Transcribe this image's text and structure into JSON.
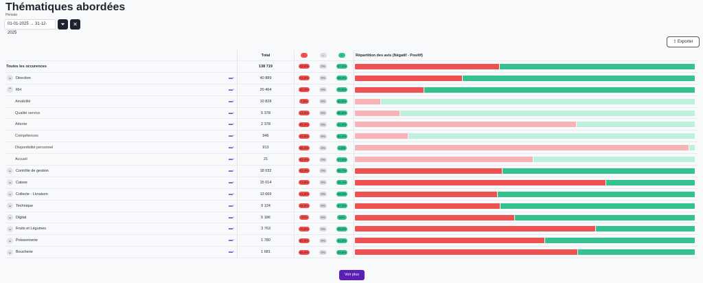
{
  "title": "Thématiques abordées",
  "period_label": "Période",
  "period_value": "01-01-2025 → 31-12-2025",
  "export_label": "⇪ Exporter",
  "more_label": "Voir plus",
  "headers": {
    "total": "Total",
    "neg": "-",
    "neu": "=",
    "pos": "+",
    "bar": "Répartition des avis (Négatif - Positif)"
  },
  "colors": {
    "negative": "#ef5050",
    "positive": "#34c38f",
    "negative_light": "#f8b4b4",
    "positive_light": "#bff0dc"
  },
  "rows": [
    {
      "label": "Toutes les occurences",
      "total": "138 719",
      "neg": "42,6%",
      "neu": "0%",
      "pos": "57,4%",
      "n": 42.6,
      "level": "all"
    },
    {
      "label": "Direction",
      "total": "40 889",
      "neg": "31,6%",
      "neu": "0%",
      "pos": "68,4%",
      "n": 31.6,
      "level": "group",
      "expanded": false
    },
    {
      "label": "RH",
      "total": "20 464",
      "neg": "20,2%",
      "neu": "0%",
      "pos": "79,8%",
      "n": 20.2,
      "level": "group",
      "expanded": true
    },
    {
      "label": "Amabilité",
      "total": "10 828",
      "neg": "7,5%",
      "neu": "0%",
      "pos": "92,5%",
      "n": 7.5,
      "level": "child"
    },
    {
      "label": "Qualité service",
      "total": "5 378",
      "neg": "13,2%",
      "neu": "0%",
      "pos": "86,8%",
      "n": 13.2,
      "level": "child"
    },
    {
      "label": "Attente",
      "total": "2 378",
      "neg": "65,2%",
      "neu": "0%",
      "pos": "34,8%",
      "n": 65.2,
      "level": "child"
    },
    {
      "label": "Compétences",
      "total": "946",
      "neg": "15,6%",
      "neu": "0%",
      "pos": "84,4%",
      "n": 15.6,
      "level": "child"
    },
    {
      "label": "Disponibilité personnel",
      "total": "913",
      "neg": "98,4%",
      "neu": "0%",
      "pos": "1,6%",
      "n": 98.4,
      "level": "child"
    },
    {
      "label": "Accueil",
      "total": "21",
      "neg": "52,4%",
      "neu": "0%",
      "pos": "47,6%",
      "n": 52.4,
      "level": "child"
    },
    {
      "label": "Contrôle de gestion",
      "total": "18 032",
      "neg": "43,3%",
      "neu": "0%",
      "pos": "56,7%",
      "n": 43.3,
      "level": "group",
      "expanded": false
    },
    {
      "label": "Caisse",
      "total": "15 014",
      "neg": "73,9%",
      "neu": "0%",
      "pos": "26,1%",
      "n": 73.9,
      "level": "group",
      "expanded": false
    },
    {
      "label": "Collecte - Livraison",
      "total": "13 669",
      "neg": "41,8%",
      "neu": "0%",
      "pos": "58,2%",
      "n": 41.8,
      "level": "group",
      "expanded": false
    },
    {
      "label": "Technique",
      "total": "9 124",
      "neg": "42,8%",
      "neu": "0%",
      "pos": "57,2%",
      "n": 42.8,
      "level": "group",
      "expanded": false
    },
    {
      "label": "Digital",
      "total": "5 186",
      "neg": "47%",
      "neu": "0%",
      "pos": "53%",
      "n": 47,
      "level": "group",
      "expanded": false
    },
    {
      "label": "Fruits et Légumes",
      "total": "3 763",
      "neg": "70,8%",
      "neu": "0%",
      "pos": "29,2%",
      "n": 70.8,
      "level": "group",
      "expanded": false
    },
    {
      "label": "Poissonnerie",
      "total": "1 780",
      "neg": "55,8%",
      "neu": "0%",
      "pos": "44,2%",
      "n": 55.8,
      "level": "group",
      "expanded": false
    },
    {
      "label": "Boucherie",
      "total": "1 681",
      "neg": "65,5%",
      "neu": "0%",
      "pos": "34,5%",
      "n": 65.5,
      "level": "group",
      "expanded": false
    }
  ]
}
